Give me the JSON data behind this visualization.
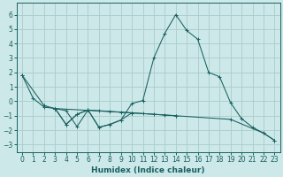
{
  "xlabel": "Humidex (Indice chaleur)",
  "bg_color": "#cce8e8",
  "grid_color": "#aacccc",
  "line_color": "#1a6060",
  "xlim": [
    -0.5,
    23.5
  ],
  "ylim": [
    -3.5,
    6.8
  ],
  "yticks": [
    -3,
    -2,
    -1,
    0,
    1,
    2,
    3,
    4,
    5,
    6
  ],
  "xticks": [
    0,
    1,
    2,
    3,
    4,
    5,
    6,
    7,
    8,
    9,
    10,
    11,
    12,
    13,
    14,
    15,
    16,
    17,
    18,
    19,
    20,
    21,
    22,
    23
  ],
  "series": [
    {
      "x": [
        0,
        1,
        2,
        3,
        4,
        5,
        6,
        7,
        8,
        9,
        10,
        11,
        12,
        13,
        14,
        15,
        16,
        17,
        18,
        19,
        20,
        21,
        22,
        23
      ],
      "y": [
        1.8,
        0.2,
        -0.4,
        -0.5,
        -1.6,
        -0.9,
        -0.6,
        -1.8,
        -1.6,
        -1.3,
        -0.15,
        0.05,
        3.0,
        4.7,
        6.0,
        4.9,
        4.3,
        2.0,
        1.7,
        -0.1,
        -1.2,
        -1.8,
        -2.2,
        -2.7
      ]
    },
    {
      "x": [
        0,
        2,
        3,
        10,
        14,
        19,
        22,
        23
      ],
      "y": [
        1.8,
        -0.3,
        -0.5,
        -0.8,
        -1.0,
        -1.25,
        -2.2,
        -2.7
      ]
    },
    {
      "x": [
        3,
        4,
        5,
        6,
        7,
        8,
        9,
        10,
        11,
        12,
        13,
        14
      ],
      "y": [
        -0.5,
        -1.6,
        -0.9,
        -0.6,
        -0.65,
        -0.7,
        -0.75,
        -0.8,
        -0.85,
        -0.9,
        -0.95,
        -1.0
      ]
    },
    {
      "x": [
        3,
        4,
        5,
        6,
        7,
        8,
        9,
        10
      ],
      "y": [
        -0.5,
        -0.65,
        -1.75,
        -0.6,
        -1.8,
        -1.6,
        -1.3,
        -0.8
      ]
    }
  ]
}
